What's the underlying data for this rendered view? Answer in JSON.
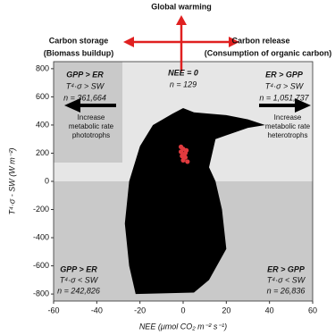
{
  "chart_data": {
    "type": "scatter",
    "xlabel": "NEE (μmol CO₂ m⁻² s⁻¹)",
    "ylabel": "T⁴·σ - SW (W m⁻²)",
    "xlim": [
      -60,
      60
    ],
    "ylim": [
      -850,
      850
    ],
    "xticks": [
      -60,
      -40,
      -20,
      0,
      20,
      40,
      60
    ],
    "yticks": [
      -800,
      -600,
      -400,
      -200,
      0,
      200,
      400,
      600,
      800
    ],
    "series": [
      {
        "color": "#000000",
        "filled": true,
        "x": [
          -22,
          -25,
          -27,
          -25,
          -20,
          -14,
          -5,
          0,
          5,
          20,
          30,
          38,
          30,
          15,
          12,
          15,
          18,
          20,
          12,
          5
        ],
        "y": [
          -800,
          -600,
          -300,
          0,
          250,
          400,
          480,
          520,
          490,
          470,
          440,
          400,
          380,
          300,
          100,
          0,
          -200,
          -480,
          -700,
          -790
        ]
      },
      {
        "color": "#e03a3e",
        "filled": false,
        "x": [
          -1,
          0,
          1,
          -0.5,
          1,
          0,
          2,
          -1,
          1.5,
          0.5
        ],
        "y": [
          210,
          230,
          200,
          180,
          170,
          150,
          140,
          245,
          220,
          190
        ]
      }
    ],
    "annotations": {
      "top": "Global warming",
      "left": [
        "Carbon storage",
        "(Biomass buildup)"
      ],
      "right": [
        "Carbon release",
        "(Consumption of organic carbon)"
      ],
      "upper_left": [
        "GPP > ER",
        "T⁴·σ > SW",
        "n = 361,664"
      ],
      "center": [
        "NEE = 0",
        "n = 129"
      ],
      "upper_right": [
        "ER > GPP",
        "T⁴·σ > SW",
        "n = 1,051,737"
      ],
      "arrow_left": [
        "Increase",
        "metabolic rate",
        "phototrophs"
      ],
      "arrow_right": [
        "Increase",
        "metabolic rate",
        "heterotrophs"
      ],
      "lower_left": [
        "GPP > ER",
        "T⁴·σ < SW",
        "n = 242,826"
      ],
      "lower_right": [
        "ER > GPP",
        "T⁴·σ < SW",
        "n = 26,836"
      ]
    }
  }
}
